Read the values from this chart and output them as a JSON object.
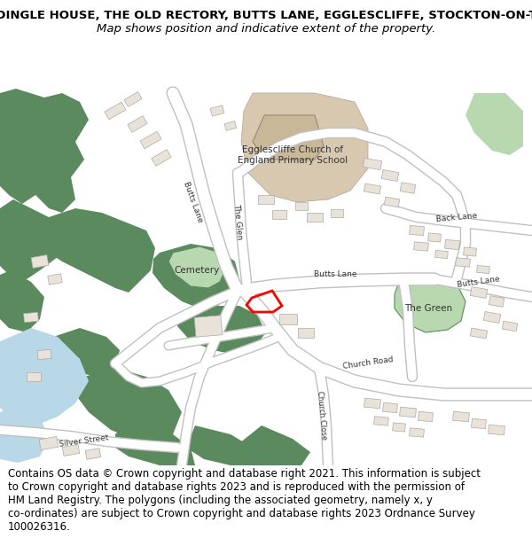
{
  "title_line1": ">>>DINGLE HOUSE, THE OLD RECTORY, BUTTS LANE, EGGLESCLIFFE, STOCKTON-ON-TEES,",
  "title_line2": "Map shows position and indicative extent of the property.",
  "footer": "Contains OS data © Crown copyright and database right 2021. This information is subject\nto Crown copyright and database rights 2023 and is reproduced with the permission of\nHM Land Registry. The polygons (including the associated geometry, namely x, y\nco-ordinates) are subject to Crown copyright and database rights 2023 Ordnance Survey\n100026316.",
  "map_bg": "#ffffff",
  "road_color": "#ffffff",
  "road_outline": "#c8c8c8",
  "building_fill": "#e8e2d8",
  "building_edge": "#aaaaaa",
  "green_dark": "#5a8a5e",
  "green_light": "#b8d8b0",
  "water_color": "#b8d8e8",
  "school_color": "#d8c8b0",
  "highlight_color": "#ff0000",
  "title_fontsize": 9.5,
  "footer_fontsize": 8.5,
  "label_fontsize": 7.5,
  "small_label_fontsize": 6.5
}
